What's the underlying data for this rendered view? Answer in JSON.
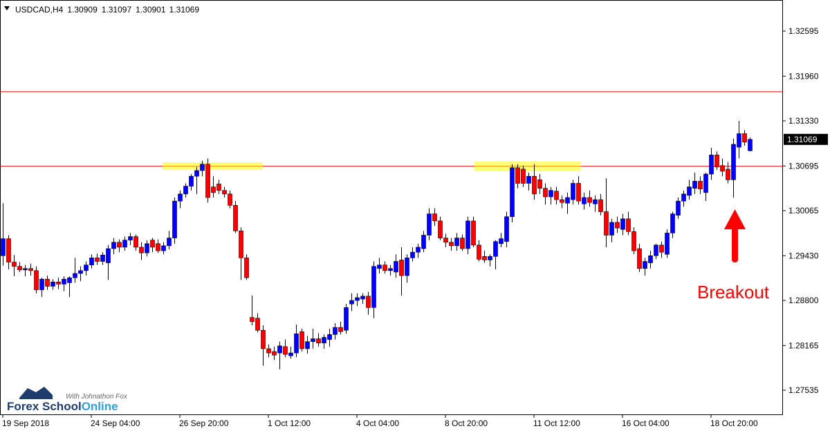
{
  "chart_data": {
    "type": "candlestick",
    "title": "USDCAD,H4",
    "x": [
      "19 Sep 2018",
      null,
      null,
      null,
      null,
      null,
      null,
      null,
      null,
      null,
      null,
      null,
      null,
      null,
      null,
      null,
      "24 Sep 04:00",
      null,
      null,
      null,
      null,
      null,
      null,
      null,
      null,
      null,
      null,
      null,
      null,
      null,
      null,
      null,
      "26 Sep 20:00",
      null,
      null,
      null,
      null,
      null,
      null,
      null,
      null,
      null,
      null,
      null,
      null,
      null,
      null,
      null,
      "1 Oct 12:00",
      null,
      null,
      null,
      null,
      null,
      null,
      null,
      null,
      null,
      null,
      null,
      null,
      null,
      null,
      null,
      "4 Oct 04:00",
      null,
      null,
      null,
      null,
      null,
      null,
      null,
      null,
      null,
      null,
      null,
      null,
      null,
      null,
      null,
      "8 Oct 20:00",
      null,
      null,
      null,
      null,
      null,
      null,
      null,
      null,
      null,
      null,
      null,
      null,
      null,
      null,
      null,
      "11 Oct 12:00",
      null,
      null,
      null,
      null,
      null,
      null,
      null,
      null,
      null,
      null,
      null,
      null,
      null,
      null,
      null,
      "16 Oct 04:00",
      null,
      null,
      null,
      null,
      null,
      null,
      null,
      null,
      null,
      null,
      null,
      null,
      null,
      null,
      null,
      "18 Oct 20:00",
      null,
      null,
      null,
      null,
      null,
      null,
      null
    ],
    "open": [
      1.2943,
      1.2967,
      1.2934,
      1.2928,
      1.2923,
      1.2925,
      1.2922,
      1.2895,
      1.291,
      1.29,
      1.2906,
      1.2903,
      1.2905,
      1.2912,
      1.2918,
      1.2922,
      1.293,
      1.294,
      1.2935,
      1.2933,
      1.2953,
      1.2962,
      1.2955,
      1.2965,
      1.297,
      1.2955,
      1.2947,
      1.2965,
      1.296,
      1.295,
      1.2957,
      1.2968,
      1.302,
      1.303,
      1.3041,
      1.3055,
      1.3063,
      1.3072,
      1.304,
      1.3044,
      1.3035,
      1.303,
      1.3014,
      1.2978,
      1.294,
      1.2856,
      1.2855,
      1.2838,
      1.2812,
      1.2808,
      1.2806,
      1.2815,
      1.2802,
      1.2806,
      1.2836,
      1.2812,
      1.2822,
      1.2826,
      1.282,
      1.2825,
      1.2832,
      1.2842,
      1.2838,
      1.2875,
      1.288,
      1.2882,
      1.2886,
      1.287,
      1.2925,
      1.293,
      1.2922,
      1.292,
      1.2937,
      1.2915,
      1.294,
      1.2948,
      1.2953,
      1.2972,
      1.3002,
      1.2992,
      1.2968,
      1.2962,
      1.2957,
      1.2968,
      1.2953,
      1.2992,
      1.2958,
      1.2942,
      1.2937,
      1.2942,
      1.296,
      1.2963,
      1.2998,
      1.3067,
      1.3065,
      1.3045,
      1.3055,
      1.305,
      1.3038,
      1.3026,
      1.3034,
      1.3022,
      1.3017,
      1.3022,
      1.3045,
      1.3016,
      1.3025,
      1.3016,
      1.3022,
      1.3005,
      1.2972,
      1.299,
      1.298,
      1.2995,
      1.2977,
      1.2953,
      1.2925,
      1.2933,
      1.2943,
      1.2958,
      1.2945,
      1.2975,
      1.3,
      1.302,
      1.3028,
      1.3038,
      1.3048,
      1.3032,
      1.3058,
      1.3085,
      1.307,
      1.3065,
      1.305,
      1.3096,
      1.3115,
      1.30909
    ],
    "high": [
      1.3017,
      1.2972,
      1.2944,
      1.2934,
      1.293,
      1.2932,
      1.2928,
      1.2912,
      1.2915,
      1.291,
      1.2912,
      1.2914,
      1.2914,
      1.294,
      1.2928,
      1.2935,
      1.2945,
      1.2946,
      1.2948,
      1.2958,
      1.2968,
      1.2966,
      1.297,
      1.2975,
      1.2973,
      1.2962,
      1.2965,
      1.2968,
      1.2966,
      1.2962,
      1.2978,
      1.3025,
      1.3035,
      1.3045,
      1.3058,
      1.3068,
      1.3077,
      1.308,
      1.3055,
      1.305,
      1.304,
      1.3035,
      1.302,
      1.2983,
      1.2945,
      1.2887,
      1.2862,
      1.2845,
      1.2818,
      1.2815,
      1.2822,
      1.2825,
      1.2815,
      1.2846,
      1.284,
      1.283,
      1.284,
      1.2834,
      1.2832,
      1.284,
      1.2848,
      1.285,
      1.2875,
      1.289,
      1.289,
      1.289,
      1.2892,
      1.2935,
      1.294,
      1.2935,
      1.293,
      1.2945,
      1.2955,
      1.2945,
      1.2955,
      1.296,
      1.2978,
      1.301,
      1.301,
      1.2998,
      1.2974,
      1.2968,
      1.2975,
      1.2973,
      1.2998,
      1.2998,
      1.2965,
      1.295,
      1.2945,
      1.2965,
      1.2975,
      1.3005,
      1.3072,
      1.3072,
      1.307,
      1.306,
      1.3072,
      1.3058,
      1.3045,
      1.304,
      1.304,
      1.3028,
      1.3032,
      1.305,
      1.3055,
      1.3032,
      1.3035,
      1.3028,
      1.303,
      1.3052,
      1.2995,
      1.2998,
      1.3002,
      1.3005,
      1.2983,
      1.296,
      1.294,
      1.295,
      1.296,
      1.2963,
      1.298,
      1.3005,
      1.3025,
      1.3035,
      1.305,
      1.306,
      1.3055,
      1.306,
      1.3095,
      1.309,
      1.308,
      1.3075,
      1.3108,
      1.3133,
      1.312,
      1.31097
    ],
    "low": [
      1.2929,
      1.2924,
      1.2914,
      1.292,
      1.2914,
      1.2915,
      1.289,
      1.2885,
      1.2895,
      1.2895,
      1.2896,
      1.2893,
      1.2885,
      1.2905,
      1.2907,
      1.2915,
      1.2925,
      1.293,
      1.293,
      1.2909,
      1.2945,
      1.2948,
      1.295,
      1.2958,
      1.295,
      1.2937,
      1.2942,
      1.2948,
      1.2947,
      1.2945,
      1.2952,
      1.296,
      1.301,
      1.3025,
      1.3035,
      1.303,
      1.3055,
      1.3018,
      1.3025,
      1.303,
      1.3025,
      1.301,
      1.2975,
      1.2909,
      1.2909,
      1.2845,
      1.2835,
      1.2788,
      1.28,
      1.2796,
      1.2783,
      1.28,
      1.2798,
      1.28,
      1.2808,
      1.2805,
      1.2812,
      1.2815,
      1.2812,
      1.2815,
      1.2825,
      1.2832,
      1.2833,
      1.2865,
      1.2872,
      1.2875,
      1.286,
      1.2855,
      1.2918,
      1.2918,
      1.2915,
      1.2912,
      1.2887,
      1.2905,
      1.2935,
      1.294,
      1.2948,
      1.2965,
      1.2985,
      1.2965,
      1.2955,
      1.295,
      1.295,
      1.295,
      1.2945,
      1.2955,
      1.2935,
      1.2933,
      1.2928,
      1.2924,
      1.2955,
      1.2955,
      1.299,
      1.3038,
      1.304,
      1.3035,
      1.3022,
      1.303,
      1.3015,
      1.3015,
      1.3015,
      1.301,
      1.3002,
      1.3015,
      1.3015,
      1.3008,
      1.3012,
      1.3005,
      1.3,
      1.2955,
      1.2962,
      1.2975,
      1.2972,
      1.2972,
      1.2945,
      1.292,
      1.2915,
      1.2925,
      1.2938,
      1.294,
      1.294,
      1.2968,
      1.2995,
      1.3012,
      1.3022,
      1.303,
      1.303,
      1.302,
      1.305,
      1.3064,
      1.3055,
      1.3045,
      1.3025,
      1.308,
      1.3098,
      1.30901
    ],
    "close": [
      1.2967,
      1.2934,
      1.2928,
      1.2923,
      1.2925,
      1.2922,
      1.2895,
      1.291,
      1.29,
      1.2906,
      1.2903,
      1.291,
      1.2912,
      1.2918,
      1.2922,
      1.293,
      1.294,
      1.2935,
      1.2944,
      1.2953,
      1.2962,
      1.2955,
      1.2965,
      1.297,
      1.2955,
      1.2947,
      1.296,
      1.2955,
      1.295,
      1.2957,
      1.2968,
      1.302,
      1.303,
      1.3041,
      1.3055,
      1.3063,
      1.3072,
      1.3025,
      1.3032,
      1.3035,
      1.303,
      1.3014,
      1.2978,
      1.294,
      1.2912,
      1.285,
      1.2838,
      1.2812,
      1.2806,
      1.2803,
      1.2816,
      1.2804,
      1.2806,
      1.2833,
      1.2812,
      1.2822,
      1.2826,
      1.282,
      1.2828,
      1.2832,
      1.2842,
      1.2836,
      1.287,
      1.288,
      1.2884,
      1.2886,
      1.287,
      1.2928,
      1.293,
      1.2922,
      1.2925,
      1.2935,
      1.2915,
      1.294,
      1.2948,
      1.2955,
      1.2972,
      1.3002,
      1.2992,
      1.2968,
      1.2962,
      1.2957,
      1.2968,
      1.2953,
      1.2992,
      1.2958,
      1.2938,
      1.2937,
      1.2942,
      1.2963,
      1.2967,
      1.2998,
      1.3067,
      1.3045,
      1.3045,
      1.3055,
      1.303,
      1.3038,
      1.3026,
      1.3035,
      1.3022,
      1.3018,
      1.3025,
      1.3045,
      1.302,
      1.3025,
      1.3018,
      1.3022,
      1.3005,
      1.2972,
      1.299,
      1.2982,
      1.2995,
      1.2977,
      1.295,
      1.2925,
      1.2935,
      1.2943,
      1.2958,
      1.2948,
      1.2975,
      1.3002,
      1.302,
      1.303,
      1.304,
      1.3048,
      1.3037,
      1.3058,
      1.3085,
      1.3068,
      1.3062,
      1.305,
      1.31,
      1.3115,
      1.3103,
      1.31069
    ],
    "up_color": "#0000ff",
    "down_color": "#ff0000",
    "ylim": [
      1.27195,
      1.33033
    ],
    "yticks": [
      1.27535,
      1.28165,
      {
        "value": 1.288,
        "label": "1.28800"
      },
      {
        "value": 1.2943,
        "label": "1.29430"
      },
      1.30065,
      1.30695,
      {
        "value": 1.3133,
        "label": "1.31330"
      },
      {
        "value": 1.3196,
        "label": "1.31960"
      },
      1.32595
    ],
    "levels": [
      1.3174,
      1.3069
    ],
    "level_color": "#e00000",
    "annotation": "Breakout",
    "logo": {
      "tagline": "With Johnathon Fox",
      "name": "Forex School",
      "name_accent": "Online"
    }
  }
}
